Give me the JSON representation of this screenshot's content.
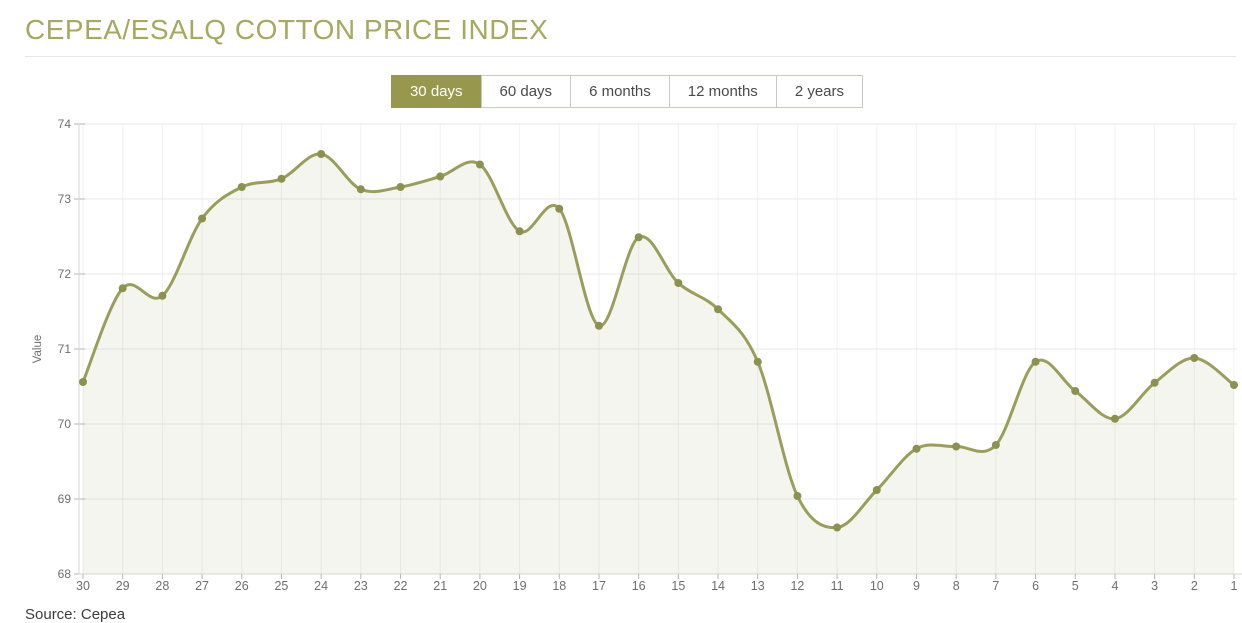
{
  "header": {
    "title": "CEPEA/ESALQ COTTON PRICE INDEX"
  },
  "tabs": [
    {
      "label": "30 days",
      "active": true
    },
    {
      "label": "60 days",
      "active": false
    },
    {
      "label": "6 months",
      "active": false
    },
    {
      "label": "12 months",
      "active": false
    },
    {
      "label": "2 years",
      "active": false
    }
  ],
  "footer": {
    "source": "Source: Cepea"
  },
  "colors": {
    "title": "#a6a95f",
    "active_tab_bg": "#97984e",
    "line": "#9a9e5b",
    "marker": "#8d9150",
    "area_fill": "rgba(158,160,94,0.10)",
    "h_gridline": "#e9e9e9",
    "v_gridline": "#f1f1ef",
    "axis_line": "#d6d6d2",
    "tick": "#b5b5b5",
    "axis_text": "#6e6e6e"
  },
  "chart_data": {
    "type": "area",
    "title": "CEPEA/ESALQ COTTON PRICE INDEX",
    "categories": [
      "30",
      "29",
      "28",
      "27",
      "26",
      "25",
      "24",
      "23",
      "22",
      "21",
      "20",
      "19",
      "18",
      "17",
      "16",
      "15",
      "14",
      "13",
      "12",
      "11",
      "10",
      "9",
      "8",
      "7",
      "6",
      "5",
      "4",
      "3",
      "2",
      "1"
    ],
    "values": [
      70.56,
      71.81,
      71.71,
      72.74,
      73.16,
      73.27,
      73.6,
      73.13,
      73.16,
      73.3,
      73.46,
      72.57,
      72.87,
      71.31,
      72.49,
      71.88,
      71.53,
      70.83,
      69.04,
      68.62,
      69.12,
      69.67,
      69.7,
      69.72,
      70.83,
      70.44,
      70.07,
      70.55,
      70.88,
      70.52
    ],
    "xlabel": "",
    "ylabel": "Value",
    "ylim": [
      68,
      74
    ],
    "yticks": [
      68,
      69,
      70,
      71,
      72,
      73,
      74
    ],
    "grid": true,
    "legend": "none",
    "marker": "circle",
    "smoothed": true
  }
}
